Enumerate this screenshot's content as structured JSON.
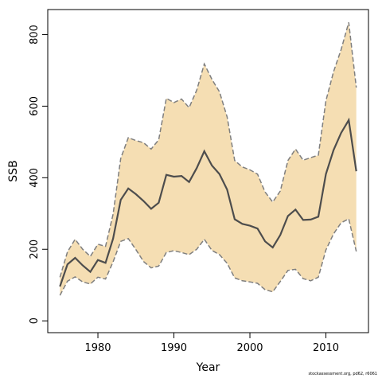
{
  "chart_data": {
    "type": "line",
    "title": "",
    "xlabel": "Year",
    "ylabel": "SSB",
    "xlim": [
      1973.4,
      2015.6
    ],
    "ylim": [
      -33,
      870
    ],
    "x_ticks": [
      1980,
      1990,
      2000,
      2010
    ],
    "y_ticks": [
      0,
      200,
      400,
      600,
      800
    ],
    "grid": false,
    "series": [
      {
        "role": "estimate",
        "color": "#4d4d4d",
        "x": [
          1975,
          1976,
          1977,
          1978,
          1979,
          1980,
          1981,
          1982,
          1983,
          1984,
          1985,
          1986,
          1987,
          1988,
          1989,
          1990,
          1991,
          1992,
          1993,
          1994,
          1995,
          1996,
          1997,
          1998,
          1999,
          2000,
          2001,
          2002,
          2003,
          2004,
          2005,
          2006,
          2007,
          2008,
          2009,
          2010,
          2011,
          2012,
          2013,
          2014
        ],
        "values": [
          96,
          158,
          176,
          155,
          137,
          170,
          162,
          230,
          338,
          370,
          354,
          335,
          313,
          330,
          408,
          403,
          405,
          388,
          427,
          474,
          434,
          410,
          367,
          284,
          271,
          266,
          258,
          222,
          205,
          240,
          293,
          311,
          282,
          283,
          291,
          410,
          477,
          525,
          561,
          418
        ]
      },
      {
        "role": "lower_bound",
        "color": "#7f7f7f",
        "x": [
          1975,
          1976,
          1977,
          1978,
          1979,
          1980,
          1981,
          1982,
          1983,
          1984,
          1985,
          1986,
          1987,
          1988,
          1989,
          1990,
          1991,
          1992,
          1993,
          1994,
          1995,
          1996,
          1997,
          1998,
          1999,
          2000,
          2001,
          2002,
          2003,
          2004,
          2005,
          2006,
          2007,
          2008,
          2009,
          2010,
          2011,
          2012,
          2013,
          2014
        ],
        "values": [
          71,
          111,
          123,
          109,
          103,
          122,
          117,
          165,
          222,
          230,
          199,
          166,
          148,
          153,
          191,
          196,
          191,
          185,
          200,
          228,
          197,
          185,
          161,
          120,
          112,
          109,
          105,
          87,
          81,
          110,
          141,
          144,
          118,
          112,
          122,
          198,
          243,
          274,
          285,
          194
        ]
      },
      {
        "role": "upper_bound",
        "color": "#7f7f7f",
        "x": [
          1975,
          1976,
          1977,
          1978,
          1979,
          1980,
          1981,
          1982,
          1983,
          1984,
          1985,
          1986,
          1987,
          1988,
          1989,
          1990,
          1991,
          1992,
          1993,
          1994,
          1995,
          1996,
          1997,
          1998,
          1999,
          2000,
          2001,
          2002,
          2003,
          2004,
          2005,
          2006,
          2007,
          2008,
          2009,
          2010,
          2011,
          2012,
          2013,
          2014
        ],
        "values": [
          122,
          193,
          228,
          200,
          180,
          214,
          208,
          298,
          454,
          512,
          504,
          498,
          480,
          506,
          622,
          610,
          620,
          596,
          645,
          718,
          675,
          640,
          570,
          448,
          430,
          422,
          410,
          360,
          332,
          363,
          448,
          480,
          449,
          456,
          463,
          615,
          696,
          758,
          834,
          652
        ]
      }
    ],
    "band": {
      "between": [
        "lower_bound",
        "upper_bound"
      ],
      "fill_color": "#f5deb3"
    },
    "annotation": "stockassessment.org, pd62, r6061"
  }
}
